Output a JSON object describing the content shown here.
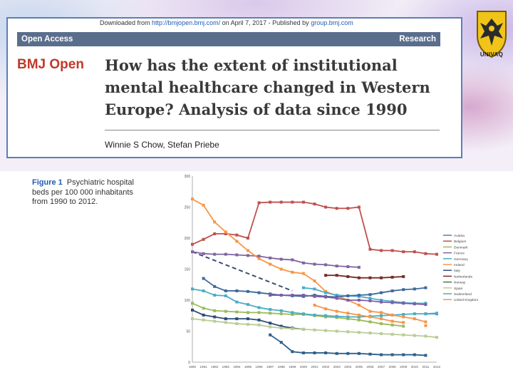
{
  "header": {
    "download_prefix": "Downloaded from ",
    "download_url": "http://bmjopen.bmj.com/",
    "download_middle": " on April 7, 2017 - Published by ",
    "download_publisher": "group.bmj.com",
    "open_access": "Open Access",
    "research": "Research"
  },
  "journal": "BMJ Open",
  "title_lines": [
    "How has the extent of institutional",
    "mental healthcare changed in Western",
    "Europe? Analysis of data since 1990"
  ],
  "authors": "Winnie S Chow, Stefan Priebe",
  "logo": {
    "text": "UNIVAQ"
  },
  "figure": {
    "label": "Figure 1",
    "caption": "Psychiatric hospital beds per 100 000 inhabitants from 1990 to 2012."
  },
  "chart_data": {
    "type": "line",
    "x": [
      "1990",
      "1991",
      "1992",
      "1993",
      "1994",
      "1995",
      "1996",
      "1997",
      "1998",
      "1999",
      "2000",
      "2001",
      "2002",
      "2003",
      "2004",
      "2005",
      "2006",
      "2007",
      "2008",
      "2009",
      "2010",
      "2011",
      "2012"
    ],
    "ylim": [
      0,
      300
    ],
    "yticks": [
      0,
      50,
      100,
      150,
      200,
      250,
      300
    ],
    "series": [
      {
        "name": "Austria",
        "color": "#4f81bd",
        "values": [
          null,
          null,
          null,
          null,
          null,
          null,
          null,
          null,
          null,
          null,
          null,
          null,
          null,
          null,
          null,
          null,
          null,
          null,
          null,
          null,
          null,
          78,
          78
        ]
      },
      {
        "name": "Belgium",
        "color": "#c0504d",
        "values": [
          190,
          198,
          207,
          207,
          205,
          200,
          257,
          258,
          258,
          258,
          258,
          255,
          250,
          248,
          248,
          250,
          182,
          180,
          180,
          178,
          178,
          175,
          174
        ]
      },
      {
        "name": "Denmark",
        "color": "#9bbb59",
        "values": [
          95,
          87,
          83,
          82,
          81,
          80,
          80,
          79,
          78,
          77,
          77,
          75,
          73,
          72,
          70,
          68,
          65,
          62,
          60,
          58,
          null,
          null,
          null
        ]
      },
      {
        "name": "France",
        "color": "#8064a2",
        "values": [
          178,
          175,
          174,
          174,
          173,
          172,
          171,
          168,
          166,
          165,
          160,
          158,
          157,
          155,
          154,
          153,
          null,
          null,
          null,
          null,
          null,
          null,
          null
        ]
      },
      {
        "name": "Germany",
        "color": "#4bacc6",
        "values": [
          118,
          115,
          108,
          107,
          97,
          93,
          88,
          85,
          83,
          80,
          78,
          76,
          75,
          74,
          73,
          73,
          74,
          75,
          76,
          77,
          78,
          78,
          79
        ]
      },
      {
        "name": "Ireland",
        "color": "#f79646",
        "values": [
          263,
          253,
          226,
          210,
          195,
          180,
          167,
          158,
          150,
          145,
          143,
          131,
          114,
          107,
          100,
          92,
          82,
          80,
          76,
          73,
          70,
          65,
          null
        ]
      },
      {
        "name": "Italy",
        "color": "#2c4d75",
        "values": [
          84,
          76,
          73,
          70,
          70,
          70,
          68,
          63,
          58,
          55,
          53,
          null,
          null,
          null,
          null,
          null,
          null,
          null,
          null,
          null,
          null,
          null,
          null
        ]
      },
      {
        "name": "Netherlands",
        "color": "#772c2a",
        "values": [
          null,
          null,
          null,
          null,
          null,
          null,
          null,
          null,
          null,
          null,
          null,
          null,
          140,
          140,
          138,
          136,
          136,
          136,
          137,
          138,
          null,
          null,
          null
        ]
      },
      {
        "name": "Norway",
        "color": "#5f7530",
        "values": [
          null,
          null,
          null,
          null,
          null,
          null,
          null,
          null,
          null,
          null,
          null,
          null,
          null,
          null,
          null,
          null,
          null,
          null,
          null,
          null,
          null,
          null,
          null
        ]
      },
      {
        "name": "Spain",
        "color": "#b9cd96",
        "values": [
          70,
          68,
          66,
          64,
          62,
          61,
          60,
          57,
          55,
          54,
          53,
          52,
          51,
          50,
          49,
          48,
          47,
          46,
          45,
          44,
          43,
          42,
          40
        ]
      },
      {
        "name": "Switzerland",
        "color": "#4bacc6",
        "values": [
          null,
          null,
          null,
          null,
          null,
          null,
          null,
          null,
          null,
          null,
          120,
          118,
          112,
          108,
          107,
          106,
          103,
          100,
          98,
          96,
          95,
          95,
          null
        ]
      },
      {
        "name": "United Kingdom",
        "color": "#f79646",
        "values": [
          null,
          null,
          null,
          null,
          null,
          null,
          null,
          null,
          null,
          null,
          null,
          92,
          86,
          82,
          79,
          76,
          73,
          70,
          66,
          64,
          null,
          59,
          null
        ]
      },
      {
        "name": "",
        "color": "#3d6a9b",
        "values": [
          null,
          135,
          122,
          115,
          115,
          114,
          112,
          110,
          108,
          107,
          106,
          108,
          106,
          105,
          107,
          108,
          109,
          112,
          115,
          117,
          118,
          120,
          null
        ]
      },
      {
        "name": "",
        "color": "#7b5ea7",
        "values": [
          null,
          null,
          null,
          null,
          null,
          null,
          null,
          108,
          108,
          108,
          108,
          106,
          105,
          103,
          100,
          100,
          99,
          97,
          96,
          95,
          94,
          93,
          null
        ]
      },
      {
        "name": "",
        "color": "#2e5f8a",
        "values": [
          null,
          null,
          null,
          null,
          null,
          null,
          null,
          44,
          32,
          17,
          15,
          15,
          15,
          14,
          14,
          14,
          13,
          12,
          12,
          12,
          12,
          11,
          null
        ]
      }
    ],
    "dashed_series": {
      "color": "#3d4f73",
      "from": [
        1990,
        178
      ],
      "to": [
        1999,
        115
      ]
    }
  }
}
